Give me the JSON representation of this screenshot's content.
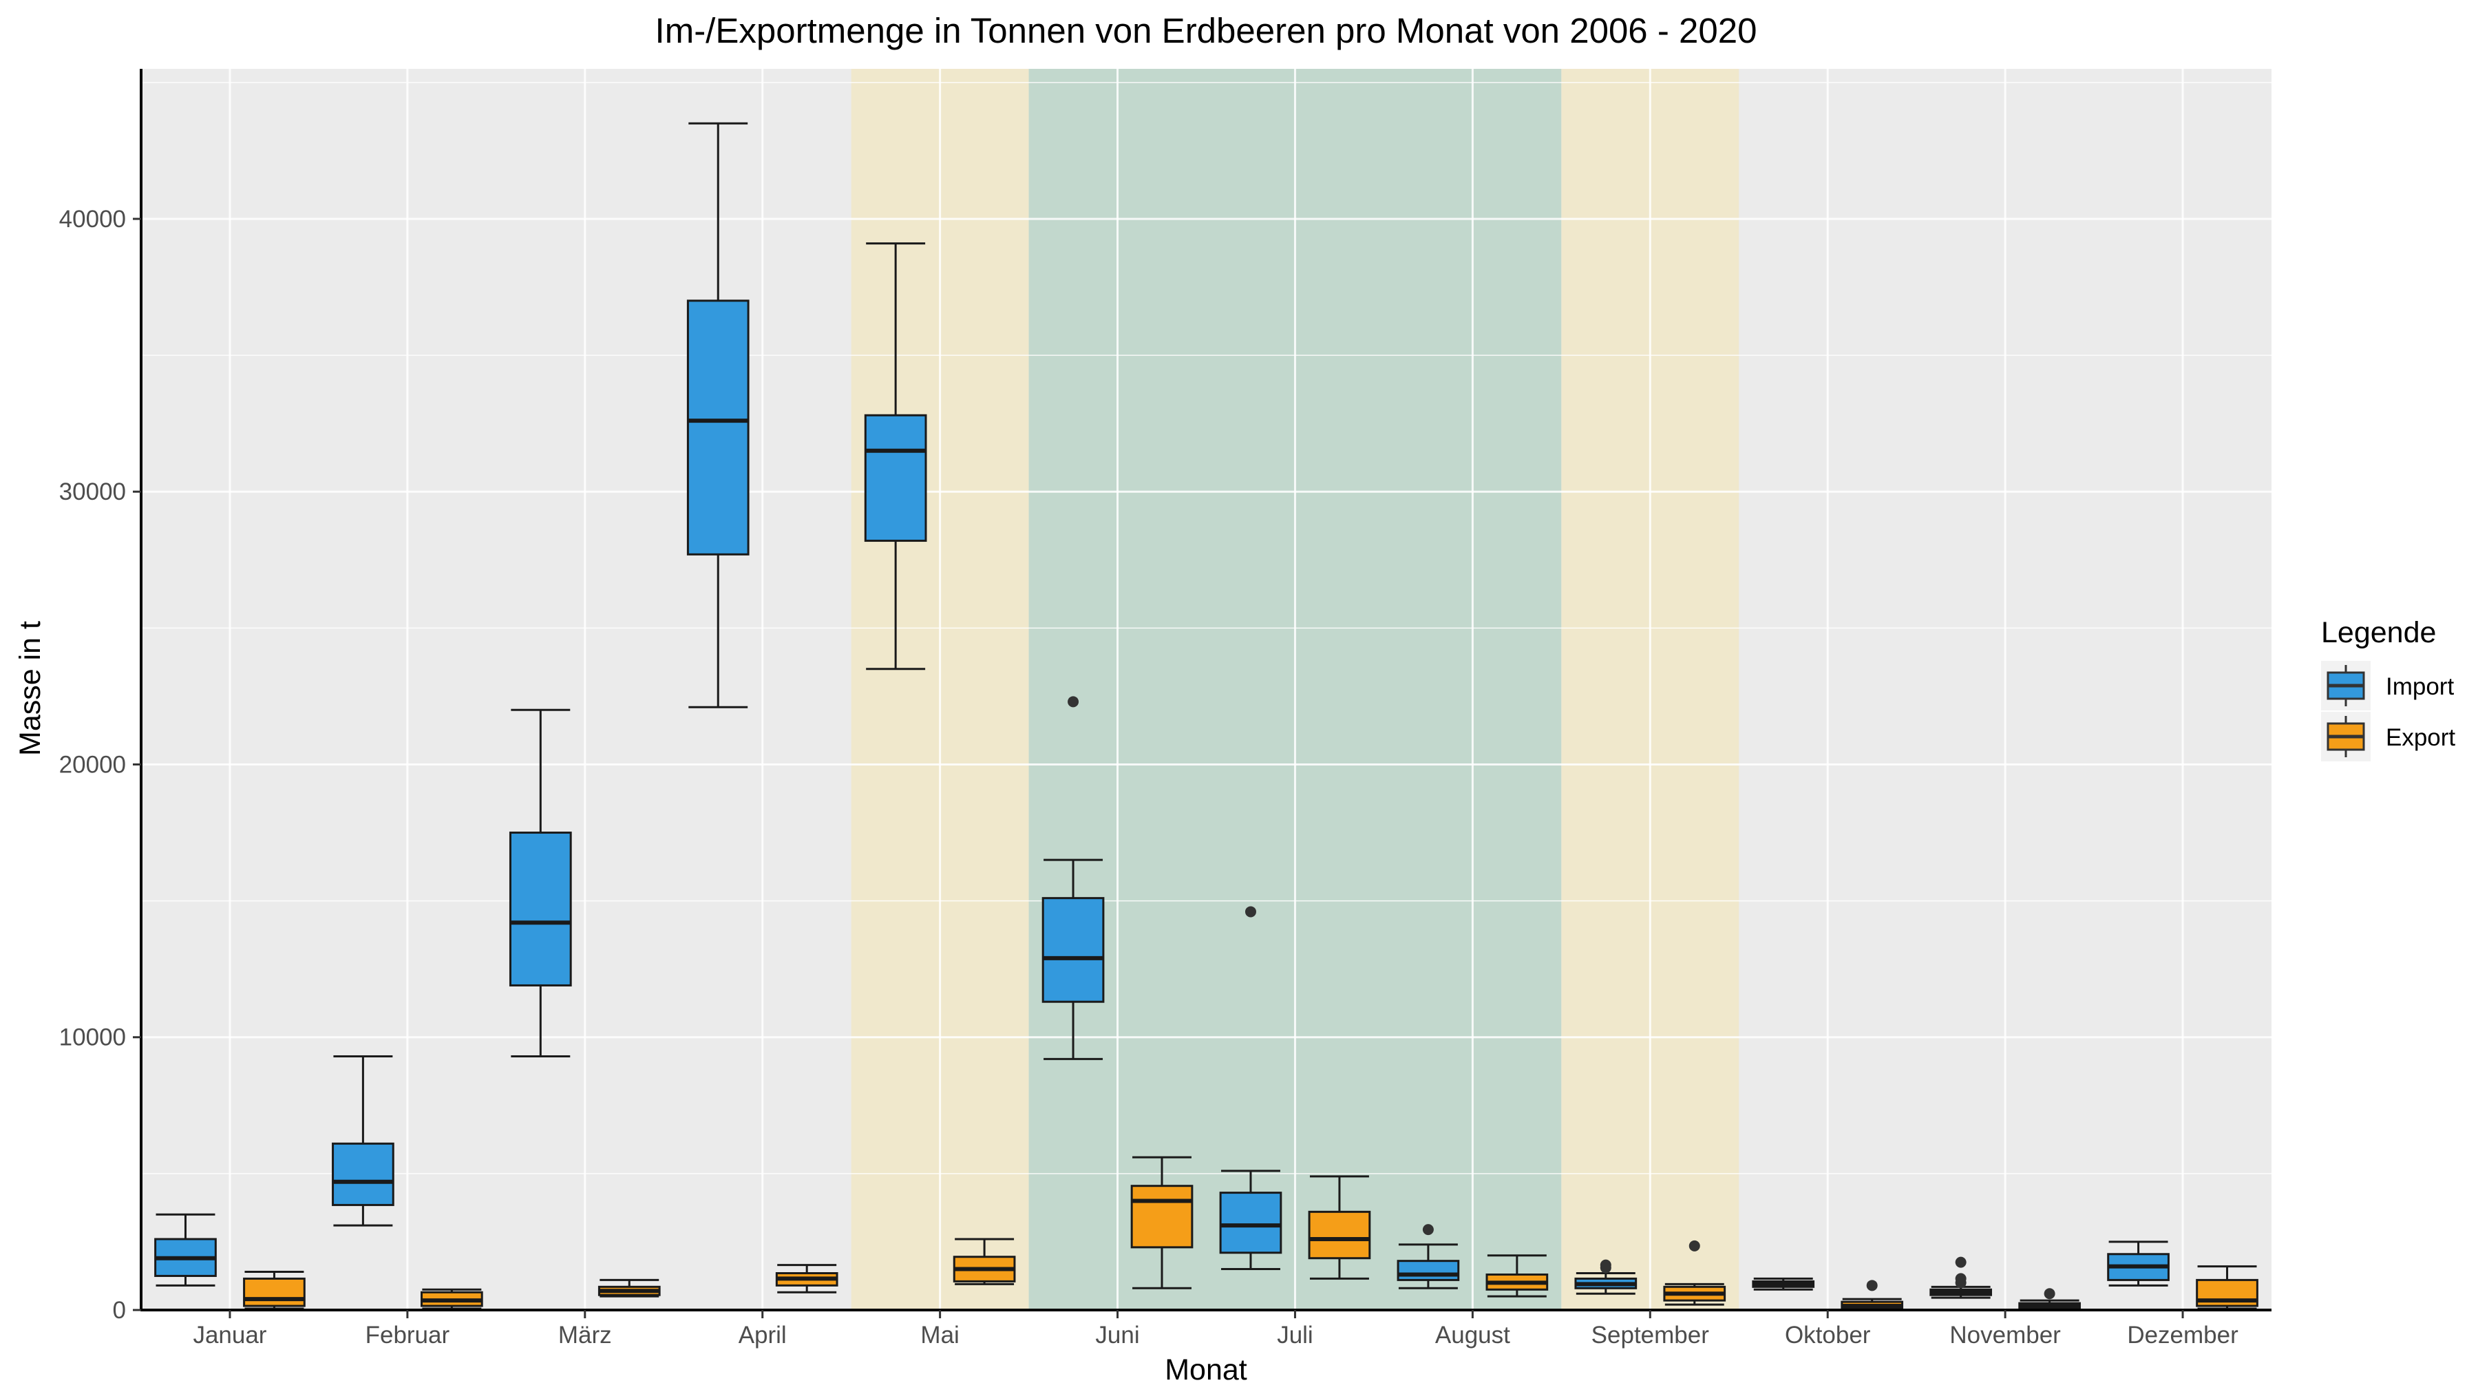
{
  "chart_data": {
    "type": "boxplot",
    "title": "Im-/Exportmenge in Tonnen von Erdbeeren pro Monat von 2006 - 2020",
    "xlabel": "Monat",
    "ylabel": "Masse in t",
    "ylim": [
      0,
      45500
    ],
    "y_ticks": [
      0,
      10000,
      20000,
      30000,
      40000
    ],
    "y_tick_labels": [
      "0",
      "10000",
      "20000",
      "30000",
      "40000"
    ],
    "categories": [
      "Januar",
      "Februar",
      "März",
      "April",
      "Mai",
      "Juni",
      "Juli",
      "August",
      "September",
      "Oktober",
      "November",
      "Dezember"
    ],
    "grid": true,
    "legend": {
      "title": "Legende",
      "position": "right"
    },
    "highlight_bands": [
      {
        "from": "Mai",
        "to": "Mai",
        "color": "#f0e8cc"
      },
      {
        "from": "Juni",
        "to": "August",
        "color": "#c2d8cd"
      },
      {
        "from": "September",
        "to": "September",
        "color": "#f0e8cc"
      }
    ],
    "series": [
      {
        "name": "Import",
        "color": "#3399dd",
        "boxes": [
          {
            "min": 900,
            "q1": 1250,
            "median": 1900,
            "q3": 2600,
            "max": 3500,
            "outliers": []
          },
          {
            "min": 3100,
            "q1": 3850,
            "median": 4700,
            "q3": 6100,
            "max": 9300,
            "outliers": []
          },
          {
            "min": 9300,
            "q1": 11900,
            "median": 14200,
            "q3": 17500,
            "max": 22000,
            "outliers": []
          },
          {
            "min": 22100,
            "q1": 27700,
            "median": 32600,
            "q3": 37000,
            "max": 43500,
            "outliers": []
          },
          {
            "min": 23500,
            "q1": 28200,
            "median": 31500,
            "q3": 32800,
            "max": 39100,
            "outliers": []
          },
          {
            "min": 9200,
            "q1": 11300,
            "median": 12900,
            "q3": 15100,
            "max": 16500,
            "outliers": [
              22300
            ]
          },
          {
            "min": 1500,
            "q1": 2100,
            "median": 3100,
            "q3": 4300,
            "max": 5100,
            "outliers": [
              14600
            ]
          },
          {
            "min": 800,
            "q1": 1100,
            "median": 1300,
            "q3": 1800,
            "max": 2400,
            "outliers": [
              2950
            ]
          },
          {
            "min": 600,
            "q1": 800,
            "median": 950,
            "q3": 1150,
            "max": 1350,
            "outliers": [
              1550,
              1650
            ]
          },
          {
            "min": 750,
            "q1": 850,
            "median": 950,
            "q3": 1050,
            "max": 1150,
            "outliers": []
          },
          {
            "min": 450,
            "q1": 550,
            "median": 650,
            "q3": 750,
            "max": 850,
            "outliers": [
              1000,
              1150,
              1750
            ]
          },
          {
            "min": 900,
            "q1": 1100,
            "median": 1600,
            "q3": 2050,
            "max": 2500,
            "outliers": []
          }
        ]
      },
      {
        "name": "Export",
        "color": "#f59e18",
        "boxes": [
          {
            "min": 50,
            "q1": 150,
            "median": 400,
            "q3": 1150,
            "max": 1400,
            "outliers": []
          },
          {
            "min": 50,
            "q1": 150,
            "median": 350,
            "q3": 650,
            "max": 750,
            "outliers": []
          },
          {
            "min": 500,
            "q1": 550,
            "median": 700,
            "q3": 850,
            "max": 1100,
            "outliers": []
          },
          {
            "min": 650,
            "q1": 900,
            "median": 1150,
            "q3": 1350,
            "max": 1650,
            "outliers": []
          },
          {
            "min": 950,
            "q1": 1050,
            "median": 1500,
            "q3": 1950,
            "max": 2600,
            "outliers": []
          },
          {
            "min": 800,
            "q1": 2300,
            "median": 4000,
            "q3": 4550,
            "max": 5600,
            "outliers": []
          },
          {
            "min": 1150,
            "q1": 1900,
            "median": 2600,
            "q3": 3600,
            "max": 4900,
            "outliers": []
          },
          {
            "min": 500,
            "q1": 750,
            "median": 1000,
            "q3": 1300,
            "max": 2000,
            "outliers": []
          },
          {
            "min": 200,
            "q1": 350,
            "median": 600,
            "q3": 850,
            "max": 950,
            "outliers": [
              2350
            ]
          },
          {
            "min": 20,
            "q1": 50,
            "median": 150,
            "q3": 300,
            "max": 400,
            "outliers": [
              900
            ]
          },
          {
            "min": 20,
            "q1": 50,
            "median": 150,
            "q3": 250,
            "max": 350,
            "outliers": [
              600
            ]
          },
          {
            "min": 50,
            "q1": 150,
            "median": 350,
            "q3": 1100,
            "max": 1600,
            "outliers": []
          }
        ]
      }
    ]
  }
}
